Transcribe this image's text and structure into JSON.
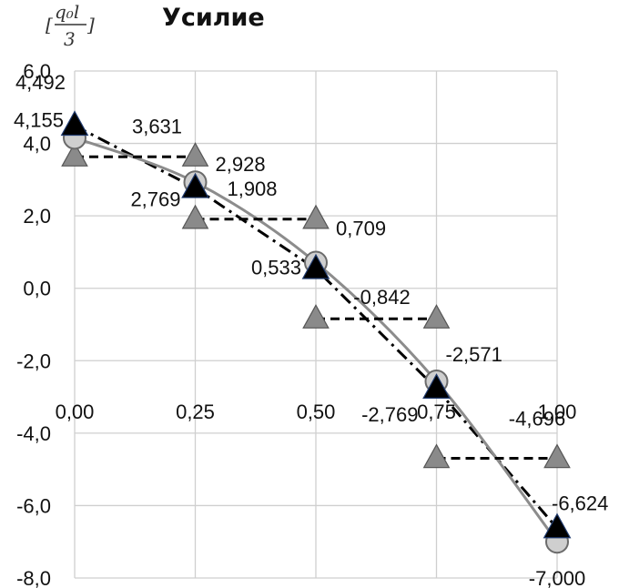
{
  "chart_data": {
    "type": "line",
    "title": "Усилие",
    "unit_label": {
      "open": "[",
      "num": "q₀l",
      "den": "3",
      "close": "]"
    },
    "xlim": [
      0,
      1
    ],
    "ylim": [
      -8,
      6
    ],
    "x_ticks": [
      {
        "value": 0,
        "label": "0,00"
      },
      {
        "value": 0.25,
        "label": "0,25"
      },
      {
        "value": 0.5,
        "label": "0,50"
      },
      {
        "value": 0.75,
        "label": "0,75"
      },
      {
        "value": 1,
        "label": "1,00"
      }
    ],
    "y_ticks": [
      {
        "value": 6,
        "label": "6,0"
      },
      {
        "value": 4,
        "label": "4,0"
      },
      {
        "value": 2,
        "label": "2,0"
      },
      {
        "value": 0,
        "label": "0,0"
      },
      {
        "value": -2,
        "label": "-2,0"
      },
      {
        "value": -4,
        "label": "-4,0"
      },
      {
        "value": -6,
        "label": "-6,0"
      },
      {
        "value": -8,
        "label": "-8,0"
      }
    ],
    "grid": true,
    "legend": "none",
    "x_axis_at_y": -3.1,
    "series": [
      {
        "style": "solid-gray-circles",
        "color": "#8c8c8c",
        "x": [
          0,
          0.25,
          0.5,
          0.75,
          1
        ],
        "y": [
          4.155,
          2.928,
          0.709,
          -2.571,
          -7.0
        ],
        "labels": [
          "4,155",
          "2,928",
          "0,709",
          "-2,571",
          "-7,000"
        ]
      },
      {
        "style": "dashdot-black-triangles",
        "color": "#000000",
        "x": [
          0,
          0.25,
          0.5,
          0.75,
          1
        ],
        "y": [
          4.492,
          2.769,
          0.533,
          -2.769,
          -6.624
        ],
        "labels": [
          "4,492",
          "2,769",
          "0,533",
          "-2,769",
          "-6,624"
        ]
      },
      {
        "style": "dashed-steps-gray-triangles",
        "color": "#7a7a7a",
        "segments": [
          {
            "x0": 0,
            "x1": 0.25,
            "y": 3.631,
            "label": "3,631"
          },
          {
            "x0": 0.25,
            "x1": 0.5,
            "y": 1.908,
            "label": "1,908"
          },
          {
            "x0": 0.5,
            "x1": 0.75,
            "y": -0.842,
            "label": "-0,842"
          },
          {
            "x0": 0.75,
            "x1": 1,
            "y": -4.696,
            "label": "-4,696"
          }
        ]
      }
    ]
  }
}
